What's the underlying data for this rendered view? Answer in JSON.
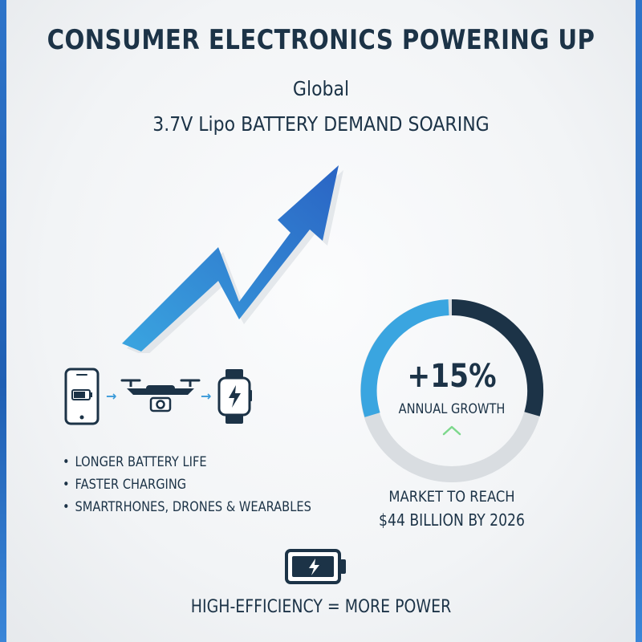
{
  "header": {
    "title": "CONSUMER ELECTRONICS POWERING UP",
    "subtitle_line1": "Global",
    "subtitle_line2": "3.7V Lipo BATTERY DEMAND SOARING"
  },
  "devices": {
    "icons": [
      "smartphone-icon",
      "drone-icon",
      "smartwatch-icon"
    ],
    "separator_glyph": "→"
  },
  "features": {
    "bullet_glyph": "•",
    "items": [
      "LONGER BATTERY LIFE",
      "FASTER CHARGING",
      "SMARTRHONES, DRONES & WEARABLES"
    ]
  },
  "growth": {
    "value": "+15%",
    "label": "ANNUAL GROWTH",
    "indicator_icon": "chevron-up-icon"
  },
  "market": {
    "line1": "MARKET TO REACH",
    "line2": "$44 BILLION BY 2026"
  },
  "footer": {
    "icon": "battery-charging-icon",
    "text": "HIGH-EFFICIENCY = MORE POWER"
  },
  "colors": {
    "navy": "#1c3347",
    "blue": "#2f7fd6",
    "light_blue": "#3aa5e0",
    "ring_gray": "#d9dde1",
    "chevron_green": "#7dd88c"
  }
}
